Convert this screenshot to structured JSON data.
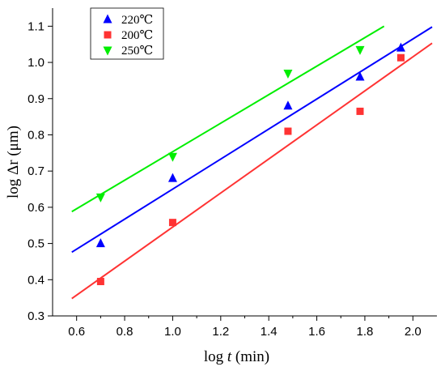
{
  "chart_data": {
    "type": "scatter",
    "title": "",
    "xlabel": "log t (min)",
    "xlabel_prefix": "log ",
    "xlabel_var": "t",
    "xlabel_suffix": " (min)",
    "ylabel": "log Δr (μm)",
    "xlim": [
      0.5,
      2.1
    ],
    "ylim": [
      0.3,
      1.15
    ],
    "xticks": [
      0.6,
      0.8,
      1.0,
      1.2,
      1.4,
      1.6,
      1.8,
      2.0
    ],
    "xtick_labels": [
      "0.6",
      "0.8",
      "1.0",
      "1.2",
      "1.4",
      "1.6",
      "1.8",
      "2.0"
    ],
    "yticks": [
      0.3,
      0.4,
      0.5,
      0.6,
      0.7,
      0.8,
      0.9,
      1.0,
      1.1
    ],
    "ytick_labels": [
      "0.3",
      "0.4",
      "0.5",
      "0.6",
      "0.7",
      "0.8",
      "0.9",
      "1.0",
      "1.1"
    ],
    "grid": false,
    "legend_position": "top-left",
    "series": [
      {
        "name": "220℃",
        "marker": "triangle-up",
        "color": "#0000ff",
        "x": [
          0.7,
          1.0,
          1.48,
          1.78,
          1.95
        ],
        "y": [
          0.5,
          0.68,
          0.88,
          0.96,
          1.04
        ],
        "fit": {
          "x": [
            0.58,
            2.08
          ],
          "y": [
            0.476,
            1.098
          ]
        }
      },
      {
        "name": "200℃",
        "marker": "square",
        "color": "#ff3333",
        "x": [
          0.7,
          1.0,
          1.48,
          1.78,
          1.95
        ],
        "y": [
          0.395,
          0.558,
          0.81,
          0.865,
          1.013
        ],
        "fit": {
          "x": [
            0.58,
            2.08
          ],
          "y": [
            0.348,
            1.053
          ]
        }
      },
      {
        "name": "250℃",
        "marker": "triangle-down",
        "color": "#00ee00",
        "x": [
          0.7,
          1.0,
          1.48,
          1.78
        ],
        "y": [
          0.628,
          0.74,
          0.97,
          1.035
        ],
        "fit": {
          "x": [
            0.58,
            1.88
          ],
          "y": [
            0.588,
            1.1
          ]
        }
      }
    ]
  }
}
